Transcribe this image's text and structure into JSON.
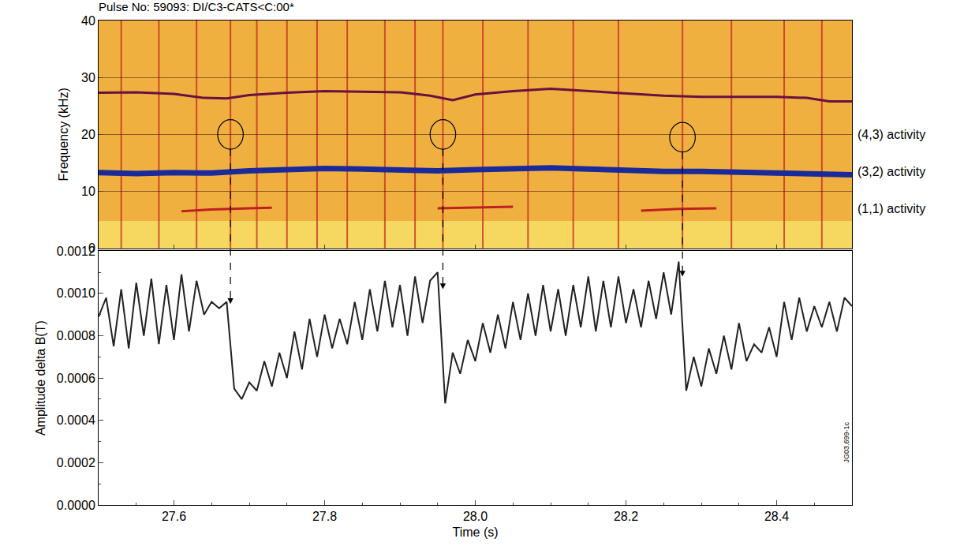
{
  "chart_data": [
    {
      "type": "line",
      "title": "Pulse No: 59093: DI/C3-CATS<C:00*",
      "y_label": "Frequency (kHz)",
      "xlim": [
        27.5,
        28.5
      ],
      "xticks": [
        27.6,
        27.8,
        {
          "value": 28,
          "label": "28.0"
        },
        28.2,
        28.4
      ],
      "ylim": [
        0,
        40
      ],
      "yticks": [
        0,
        10,
        20,
        30,
        40
      ],
      "grid": true,
      "tick_labels": "y",
      "series": [
        {
          "color": "#6a1040",
          "x": [
            27.5,
            27.55,
            27.6,
            27.64,
            27.67,
            27.7,
            27.75,
            27.8,
            27.85,
            27.9,
            27.94,
            27.97,
            28.0,
            28.05,
            28.1,
            28.15,
            28.2,
            28.25,
            28.3,
            28.35,
            28.4,
            28.44,
            28.47,
            28.5
          ],
          "values": [
            27.3,
            27.4,
            27.1,
            26.4,
            26.3,
            26.9,
            27.3,
            27.6,
            27.5,
            27.4,
            26.8,
            26.0,
            27.0,
            27.6,
            28.0,
            27.6,
            27.2,
            26.8,
            26.6,
            26.6,
            26.6,
            26.4,
            25.8,
            25.8
          ]
        },
        {
          "color": "#1a2a9a",
          "x": [
            27.5,
            27.55,
            27.6,
            27.65,
            27.7,
            27.75,
            27.8,
            27.85,
            27.9,
            27.95,
            28.0,
            28.05,
            28.1,
            28.15,
            28.2,
            28.25,
            28.3,
            28.35,
            28.4,
            28.45,
            28.5
          ],
          "values": [
            13.3,
            13.1,
            13.3,
            13.2,
            13.6,
            13.8,
            14.0,
            13.9,
            13.7,
            13.6,
            13.8,
            13.9,
            14.1,
            13.9,
            13.6,
            13.5,
            13.5,
            13.4,
            13.2,
            13.1,
            12.9
          ]
        },
        {
          "color": "#c02020",
          "x": [
            27.61,
            27.65,
            27.7,
            27.73,
            27.735,
            27.95,
            28.0,
            28.05,
            28.055,
            28.22,
            28.27,
            28.32
          ],
          "values": [
            6.5,
            6.8,
            7.0,
            7.1,
            null,
            7.0,
            7.1,
            7.3,
            null,
            6.6,
            6.9,
            7.0
          ]
        }
      ],
      "vertical_lines": [
        27.53,
        27.58,
        27.63,
        27.675,
        27.71,
        27.75,
        27.79,
        27.83,
        27.88,
        27.92,
        27.957,
        28.01,
        28.07,
        28.13,
        28.19,
        28.275,
        28.34,
        28.41,
        28.46
      ],
      "events": [
        {
          "time": 27.675,
          "frequency": 20.0,
          "amplitude": 0.00095
        },
        {
          "time": 27.957,
          "frequency": 20.0,
          "amplitude": 0.00102
        },
        {
          "time": 28.275,
          "frequency": 19.5,
          "amplitude": 0.00108
        }
      ],
      "annotations": [
        {
          "text": "(4,3) activity",
          "y": 20
        },
        {
          "text": "(3,2) activity",
          "y": 13.5
        },
        {
          "text": "(1,1) activity",
          "y": 7
        }
      ]
    },
    {
      "type": "line",
      "x_label": "Time (s)",
      "y_label": "Amplitude delta B(T)",
      "xlim": [
        27.5,
        28.5
      ],
      "xticks": [
        27.6,
        27.8,
        {
          "value": 28,
          "label": "28.0"
        },
        28.2,
        28.4
      ],
      "ylim": [
        0,
        0.0012
      ],
      "yticks": [
        {
          "value": 0,
          "label": "0.0000"
        },
        0.0002,
        0.0004,
        0.0006,
        0.0008,
        {
          "value": 0.001,
          "label": "0.0010"
        },
        0.0012
      ],
      "grid": false,
      "series": [
        {
          "color": "#222222",
          "x": [
            27.5,
            27.51,
            27.52,
            27.53,
            27.54,
            27.55,
            27.56,
            27.57,
            27.58,
            27.59,
            27.6,
            27.61,
            27.62,
            27.63,
            27.64,
            27.65,
            27.66,
            27.67,
            27.68,
            27.69,
            27.7,
            27.71,
            27.72,
            27.73,
            27.74,
            27.75,
            27.76,
            27.77,
            27.78,
            27.79,
            27.8,
            27.81,
            27.82,
            27.83,
            27.84,
            27.85,
            27.86,
            27.87,
            27.88,
            27.89,
            27.9,
            27.91,
            27.92,
            27.93,
            27.94,
            27.95,
            27.96,
            27.97,
            27.98,
            27.99,
            28.0,
            28.01,
            28.02,
            28.03,
            28.04,
            28.05,
            28.06,
            28.07,
            28.08,
            28.09,
            28.1,
            28.11,
            28.12,
            28.13,
            28.14,
            28.15,
            28.16,
            28.17,
            28.18,
            28.19,
            28.2,
            28.21,
            28.22,
            28.23,
            28.24,
            28.25,
            28.26,
            28.27,
            28.28,
            28.29,
            28.3,
            28.31,
            28.32,
            28.33,
            28.34,
            28.35,
            28.36,
            28.37,
            28.38,
            28.39,
            28.4,
            28.41,
            28.42,
            28.43,
            28.44,
            28.45,
            28.46,
            28.47,
            28.48,
            28.49,
            28.5
          ],
          "values": [
            0.00089,
            0.00098,
            0.00075,
            0.00102,
            0.00074,
            0.00105,
            0.0008,
            0.00107,
            0.00076,
            0.00104,
            0.00078,
            0.00109,
            0.00082,
            0.00106,
            0.0009,
            0.00096,
            0.00093,
            0.00096,
            0.00055,
            0.0005,
            0.00058,
            0.00054,
            0.00068,
            0.00056,
            0.00072,
            0.0006,
            0.00082,
            0.00064,
            0.00088,
            0.0007,
            0.0009,
            0.00074,
            0.00088,
            0.00076,
            0.00096,
            0.00078,
            0.00102,
            0.00082,
            0.00106,
            0.00084,
            0.00104,
            0.0008,
            0.00108,
            0.00086,
            0.00106,
            0.0011,
            0.00048,
            0.00072,
            0.00062,
            0.00078,
            0.00068,
            0.00086,
            0.00072,
            0.0009,
            0.00074,
            0.00096,
            0.00078,
            0.001,
            0.0008,
            0.00104,
            0.00082,
            0.00102,
            0.0008,
            0.00104,
            0.00084,
            0.00108,
            0.00082,
            0.00106,
            0.00084,
            0.00108,
            0.00086,
            0.00102,
            0.00084,
            0.00106,
            0.00088,
            0.0011,
            0.0009,
            0.00115,
            0.00054,
            0.0007,
            0.00056,
            0.00074,
            0.00062,
            0.0008,
            0.00064,
            0.00086,
            0.00068,
            0.00076,
            0.00072,
            0.00084,
            0.0007,
            0.00096,
            0.00078,
            0.00098,
            0.00082,
            0.00094,
            0.00084,
            0.00096,
            0.00082,
            0.00098,
            0.00094
          ]
        }
      ],
      "annotations": [
        {
          "text": "JG03.699-1c"
        }
      ]
    }
  ]
}
